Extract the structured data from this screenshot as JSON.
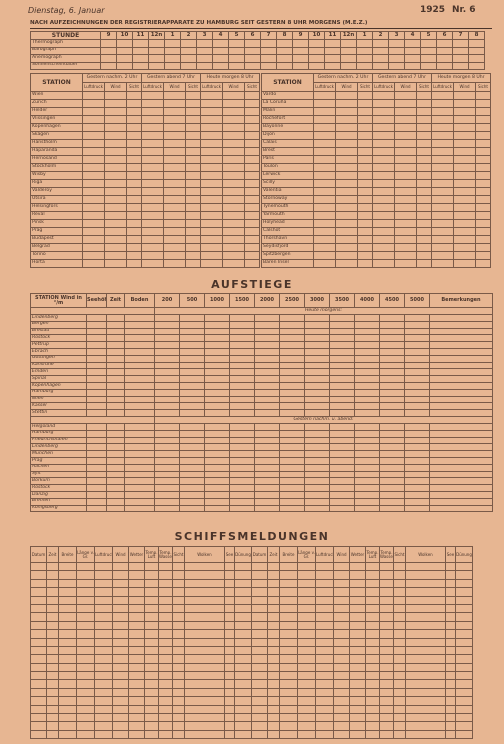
{
  "header": {
    "date": "Dienstag, 6. Januar",
    "year": "1925",
    "number": "Nr. 6",
    "subtitle": "NACH AUFZEICHNUNGEN DER REGISTRIERAPPARATE ZU HAMBURG SEIT GESTERN 8 UHR MORGENS (M.E.Z.)"
  },
  "hourly": {
    "label": "STUNDE",
    "hours": [
      "9",
      "10",
      "11",
      "12n",
      "1",
      "2",
      "3",
      "4",
      "5",
      "6",
      "7",
      "8",
      "9",
      "10",
      "11",
      "12n",
      "1",
      "2",
      "3",
      "4",
      "5",
      "6",
      "7",
      "8"
    ],
    "rows": [
      "Thermograph",
      "Barograph",
      "Anemograph",
      "Sonnenscheindauer"
    ]
  },
  "stations": {
    "header": "STATION",
    "periods": [
      "Gestern nachm. 2 Uhr",
      "Gestern abend 7 Uhr",
      "Heute morgen 8 Uhr"
    ],
    "subcolumns": [
      "Luftdruck",
      "Wind",
      "Sicht"
    ],
    "left": [
      "Wien",
      "Zürich",
      "Helder",
      "Vlissingen",
      "Kopenhagen",
      "Skagen",
      "Hanstholm",
      "Haparanda",
      "Hernösand",
      "Stockholm",
      "Wisby",
      "Riga",
      "Valderöy",
      "Utsira",
      "Helsingfors",
      "Reval",
      "Pinsk",
      "Prag",
      "Budapest",
      "Belgrad",
      "Torino",
      "Horta"
    ],
    "right": [
      "Vardö",
      "La Coruña",
      "Malin",
      "Rochefort",
      "Bayonne",
      "Dijon",
      "Calais",
      "Brest",
      "Paris",
      "Toulon",
      "Lerwick",
      "Scilly",
      "Valentia",
      "Stornoway",
      "Tynemouth",
      "Yarmouth",
      "Holyhead",
      "Calshot",
      "Thorshavn",
      "Seydisfjord",
      "Spitzbergen",
      "Bären Insel"
    ]
  },
  "ascents": {
    "title": "AUFSTIEGE",
    "columns": [
      "STATION Wind in °/m",
      "Seehöhe",
      "Zeit",
      "Boden",
      "200",
      "500",
      "1000",
      "1500",
      "2000",
      "2500",
      "3000",
      "3500",
      "4000",
      "4500",
      "5000",
      "Bemerkungen"
    ],
    "notes": [
      "Heute morgens:",
      "Gestern nachm. u. abend:"
    ],
    "morning": [
      "Lindenberg",
      "Bergen",
      "Breslau",
      "Rostock",
      "Pettrup",
      "Ebrach",
      "Gottingen",
      "Karlsruhe",
      "Emden",
      "Spinal",
      "Kopenhagen",
      "Hamburg",
      "Wien",
      "Kassel",
      "Stettin"
    ],
    "evening": [
      "Helgoland",
      "Hamburg",
      "Friedrichshafen",
      "Lindenberg",
      "München",
      "Prag",
      "Aachen",
      "Sylt",
      "Borkum",
      "Rostock",
      "Danzig",
      "Bremen",
      "Königsberg"
    ]
  },
  "ships": {
    "title": "SCHIFFSMELDUNGEN",
    "columns": [
      "Datum",
      "Zeit",
      "Breite",
      "Länge v. Gr.",
      "Luftdruck",
      "Wind",
      "Wetter",
      "Temp. Luft",
      "Temp. Wasser",
      "Sicht",
      "Wolken",
      "See",
      "Dünung"
    ]
  }
}
